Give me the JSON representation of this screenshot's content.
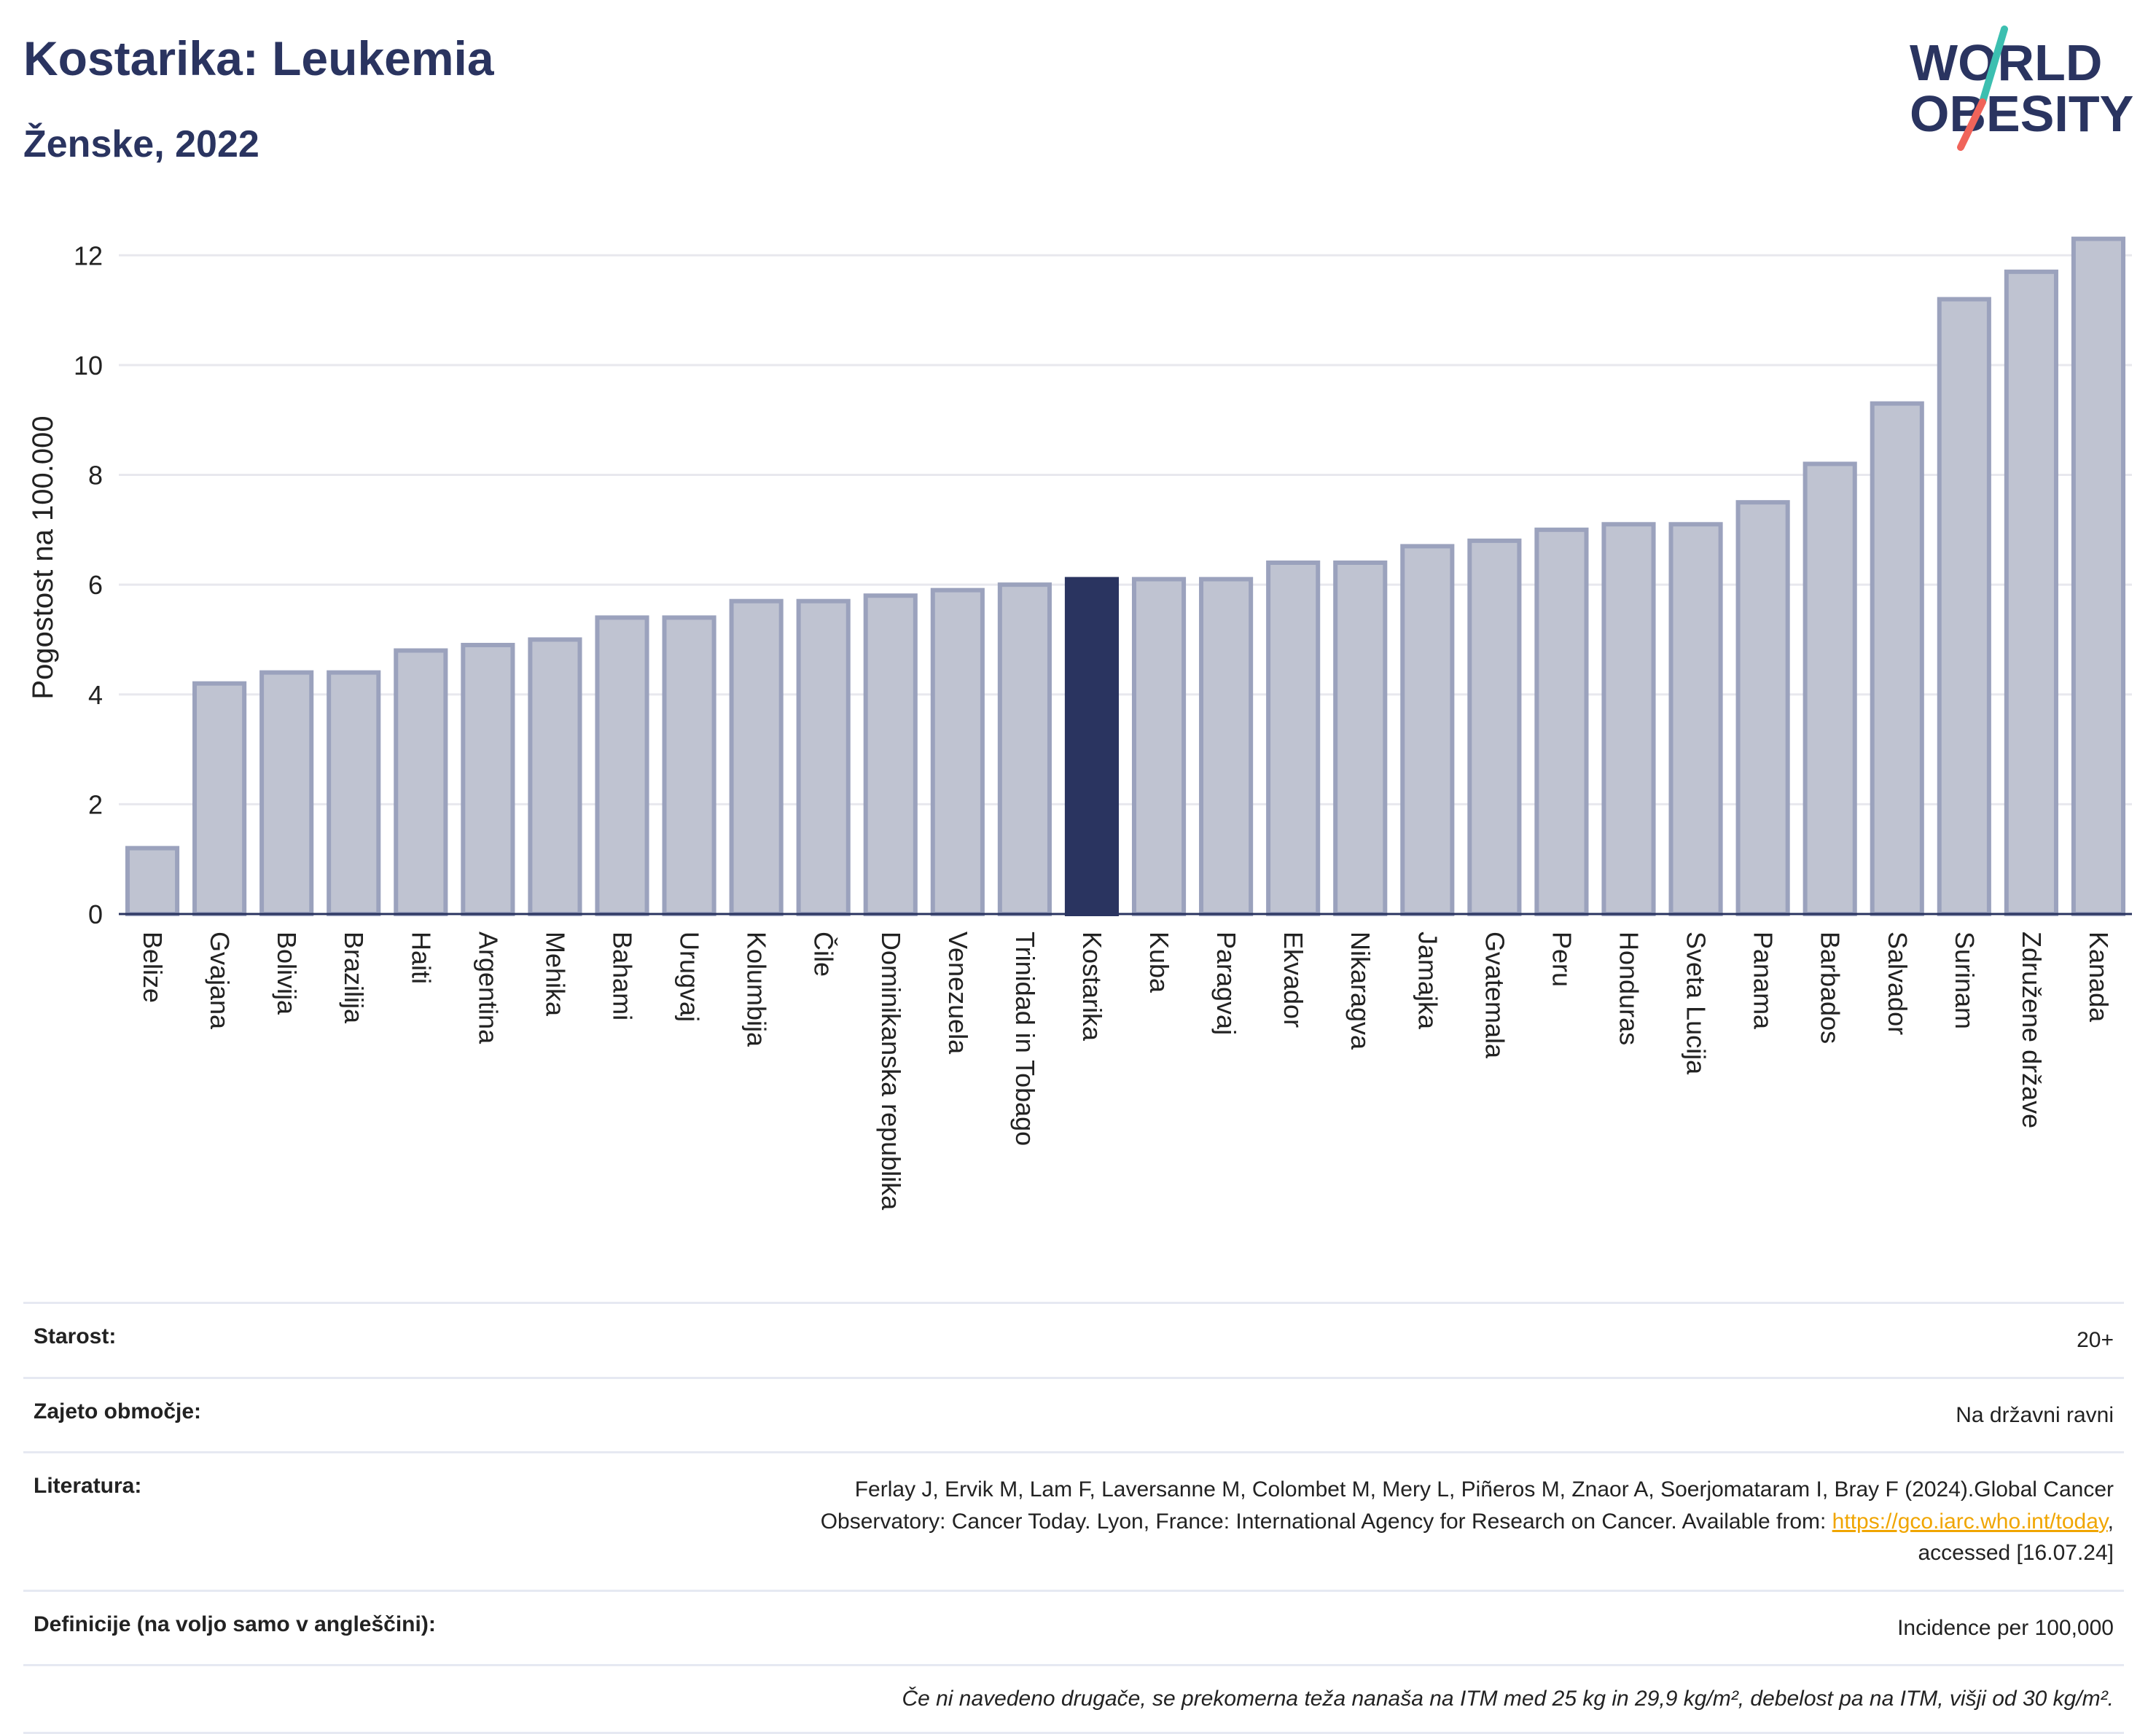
{
  "header": {
    "title": "Kostarika: Leukemia",
    "subtitle": "Ženske, 2022"
  },
  "logo": {
    "line1": "WORLD",
    "line2": "OBESITY",
    "colors": {
      "text": "#2a3460",
      "slash_top": "#3cbfb0",
      "slash_bottom": "#f0645a"
    }
  },
  "colors": {
    "bar_fill": "#bfc3d1",
    "bar_stroke": "#9ba2bd",
    "highlight": "#2a3460",
    "grid": "#e8e8ee",
    "axis": "#2a3460"
  },
  "chart_data": {
    "type": "bar",
    "title": "",
    "ylabel": "Pogostost na 100.000",
    "xlabel": "",
    "ylim": [
      0,
      12.8
    ],
    "yticks": [
      0,
      2,
      4,
      6,
      8,
      10,
      12
    ],
    "grid": true,
    "highlight_category": "Kostarika",
    "categories": [
      "Belize",
      "Gvajana",
      "Bolivija",
      "Brazilija",
      "Haiti",
      "Argentina",
      "Mehika",
      "Bahami",
      "Urugvaj",
      "Kolumbija",
      "Čile",
      "Dominikanska republika",
      "Venezuela",
      "Trinidad in Tobago",
      "Kostarika",
      "Kuba",
      "Paragvaj",
      "Ekvador",
      "Nikaragva",
      "Jamajka",
      "Gvatemala",
      "Peru",
      "Honduras",
      "Sveta Lucija",
      "Panama",
      "Barbados",
      "Salvador",
      "Surinam",
      "Združene države",
      "Kanada"
    ],
    "values": [
      1.2,
      4.2,
      4.4,
      4.4,
      4.8,
      4.9,
      5.0,
      5.4,
      5.4,
      5.7,
      5.7,
      5.8,
      5.9,
      6.0,
      6.1,
      6.1,
      6.1,
      6.4,
      6.4,
      6.7,
      6.8,
      7.0,
      7.1,
      7.1,
      7.5,
      8.2,
      9.3,
      11.2,
      11.7,
      12.3
    ]
  },
  "meta": {
    "rows": [
      {
        "key": "Starost:",
        "value": "20+"
      },
      {
        "key": "Zajeto območje:",
        "value": "Na državni ravni"
      },
      {
        "key": "Literatura:",
        "value_line1": "Ferlay J, Ervik M, Lam F, Laversanne M, Colombet M, Mery L, Piñeros M, Znaor A, Soerjomataram I, Bray F (2024).Global Cancer",
        "value_line2_pre": "Observatory: Cancer Today. Lyon, France: International Agency for Research on Cancer. Available from: ",
        "link_text": "https://gco.iarc.who.int/today",
        "value_line2_post": ",",
        "value_line3": "accessed [16.07.24]"
      },
      {
        "key": "Definicije (na voljo samo v angleščini):",
        "value": "Incidence per 100,000"
      }
    ],
    "note": "Če ni navedeno drugače, se prekomerna teža nanaša na ITM med 25 kg in 29,9 kg/m², debelost pa na ITM, višji od 30 kg/m²."
  }
}
